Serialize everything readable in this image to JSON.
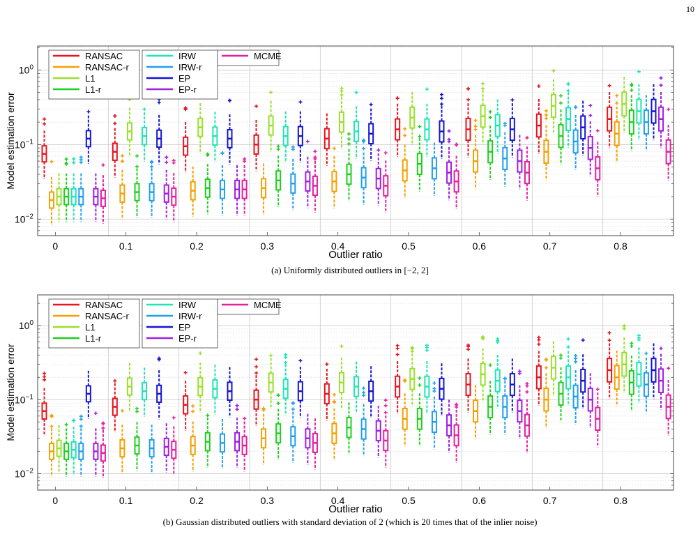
{
  "page_number": "10",
  "panels": [
    {
      "caption_prefix": "(a) Uniformly distributed outliers in ",
      "caption_math": "[−2, 2]",
      "caption_suffix": ""
    },
    {
      "caption_prefix": "(b) Gaussian distributed outliers with standard deviation of 2 (which is 20 times that of the inlier noise)",
      "caption_math": "",
      "caption_suffix": ""
    }
  ],
  "colors": {
    "RANSAC": "#e8141e",
    "RANSAC-r": "#f5a000",
    "L1": "#9ae02a",
    "L1-r": "#1ed01e",
    "IRW": "#1ee6b4",
    "IRW-r": "#1ea0f0",
    "EP": "#1414d2",
    "EP-r": "#a01ee6",
    "MCME": "#e61ea0"
  },
  "chart_data": [
    {
      "type": "box",
      "title": "",
      "xlabel": "Outlier ratio",
      "ylabel": "Model estimation error",
      "yscale": "log",
      "ylim": [
        0.006,
        2.1
      ],
      "yticks": [
        "10^{-2}",
        "10^{-1}",
        "10^{0}"
      ],
      "categories": [
        "0",
        "0.1",
        "0.2",
        "0.3",
        "0.4",
        "0.5",
        "0.6",
        "0.7",
        "0.8"
      ],
      "legend": [
        "RANSAC",
        "RANSAC-r",
        "L1",
        "L1-r",
        "IRW",
        "IRW-r",
        "EP",
        "EP-r",
        "MCME"
      ],
      "legend_position": "top-left",
      "grid": true,
      "series": [
        {
          "name": "RANSAC",
          "medians": [
            0.075,
            0.08,
            0.095,
            0.1,
            0.12,
            0.16,
            0.16,
            0.18,
            0.22
          ]
        },
        {
          "name": "RANSAC-r",
          "medians": [
            0.018,
            0.022,
            0.024,
            0.026,
            0.032,
            0.045,
            0.06,
            0.08,
            0.14
          ]
        },
        {
          "name": "L1",
          "medians": [
            0.02,
            0.15,
            0.17,
            0.18,
            0.2,
            0.23,
            0.24,
            0.33,
            0.35
          ]
        },
        {
          "name": "L1-r",
          "medians": [
            0.02,
            0.023,
            0.026,
            0.033,
            0.04,
            0.055,
            0.08,
            0.13,
            0.2
          ]
        },
        {
          "name": "IRW",
          "medians": [
            0.02,
            0.13,
            0.13,
            0.13,
            0.15,
            0.16,
            0.18,
            0.22,
            0.28
          ]
        },
        {
          "name": "IRW-r",
          "medians": [
            0.02,
            0.023,
            0.025,
            0.03,
            0.036,
            0.048,
            0.065,
            0.11,
            0.2
          ]
        },
        {
          "name": "EP",
          "medians": [
            0.12,
            0.12,
            0.12,
            0.13,
            0.14,
            0.15,
            0.16,
            0.17,
            0.28
          ]
        },
        {
          "name": "EP-r",
          "medians": [
            0.02,
            0.022,
            0.025,
            0.032,
            0.035,
            0.042,
            0.06,
            0.09,
            0.22
          ]
        },
        {
          "name": "MCME",
          "medians": [
            0.019,
            0.02,
            0.025,
            0.028,
            0.028,
            0.032,
            0.042,
            0.048,
            0.08
          ]
        }
      ]
    },
    {
      "type": "box",
      "title": "",
      "xlabel": "Outlier ratio",
      "ylabel": "Model estimation error",
      "yscale": "log",
      "ylim": [
        0.006,
        2.6
      ],
      "yticks": [
        "10^{-2}",
        "10^{-1}",
        "10^{0}"
      ],
      "categories": [
        "0",
        "0.1",
        "0.2",
        "0.3",
        "0.4",
        "0.5",
        "0.6",
        "0.7",
        "0.8"
      ],
      "legend": [
        "RANSAC",
        "RANSAC-r",
        "L1",
        "L1-r",
        "IRW",
        "IRW-r",
        "EP",
        "EP-r",
        "MCME"
      ],
      "legend_position": "top-left",
      "grid": true,
      "series": [
        {
          "name": "RANSAC",
          "medians": [
            0.07,
            0.08,
            0.085,
            0.1,
            0.12,
            0.15,
            0.16,
            0.2,
            0.25
          ]
        },
        {
          "name": "RANSAC-r",
          "medians": [
            0.02,
            0.022,
            0.024,
            0.03,
            0.035,
            0.055,
            0.07,
            0.1,
            0.2
          ]
        },
        {
          "name": "L1",
          "medians": [
            0.022,
            0.15,
            0.15,
            0.17,
            0.17,
            0.19,
            0.22,
            0.27,
            0.3
          ]
        },
        {
          "name": "L1-r",
          "medians": [
            0.02,
            0.024,
            0.027,
            0.035,
            0.042,
            0.055,
            0.08,
            0.12,
            0.17
          ]
        },
        {
          "name": "IRW",
          "medians": [
            0.021,
            0.13,
            0.14,
            0.14,
            0.15,
            0.15,
            0.18,
            0.2,
            0.22
          ]
        },
        {
          "name": "IRW-r",
          "medians": [
            0.02,
            0.022,
            0.026,
            0.032,
            0.04,
            0.05,
            0.08,
            0.11,
            0.16
          ]
        },
        {
          "name": "EP",
          "medians": [
            0.12,
            0.12,
            0.13,
            0.13,
            0.13,
            0.14,
            0.16,
            0.18,
            0.25
          ]
        },
        {
          "name": "EP-r",
          "medians": [
            0.02,
            0.023,
            0.027,
            0.03,
            0.038,
            0.045,
            0.07,
            0.1,
            0.18
          ]
        },
        {
          "name": "MCME",
          "medians": [
            0.019,
            0.021,
            0.024,
            0.026,
            0.028,
            0.033,
            0.045,
            0.055,
            0.08
          ]
        }
      ]
    }
  ]
}
